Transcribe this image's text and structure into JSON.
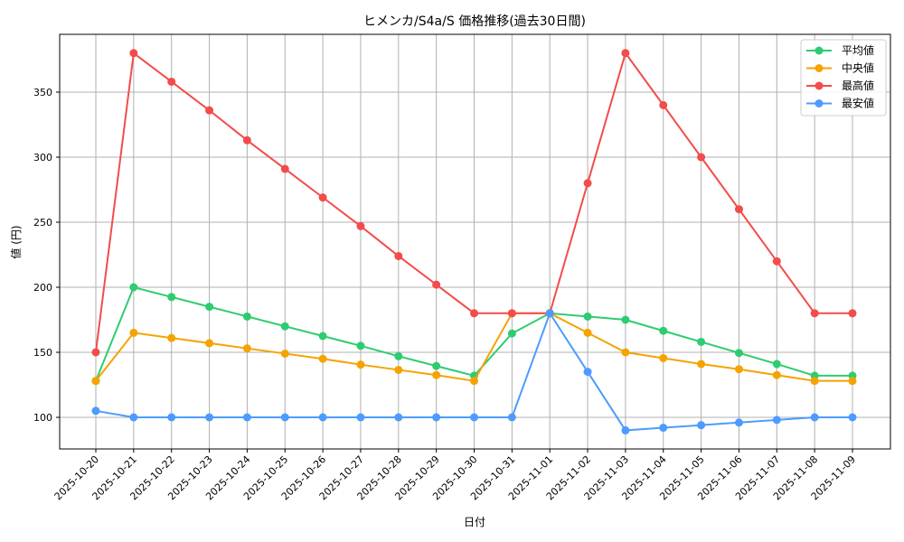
{
  "chart_data": {
    "type": "line",
    "title": "ヒメンカ/S4a/S 価格推移(過去30日間)",
    "xlabel": "日付",
    "ylabel": "値 (円)",
    "ylim": [
      75,
      392
    ],
    "yticks": [
      100,
      150,
      200,
      250,
      300,
      350
    ],
    "grid": true,
    "legend_position": "upper right",
    "categories": [
      "2025-10-20",
      "2025-10-21",
      "2025-10-22",
      "2025-10-23",
      "2025-10-24",
      "2025-10-25",
      "2025-10-26",
      "2025-10-27",
      "2025-10-28",
      "2025-10-29",
      "2025-10-30",
      "2025-10-31",
      "2025-11-01",
      "2025-11-02",
      "2025-11-03",
      "2025-11-04",
      "2025-11-05",
      "2025-11-06",
      "2025-11-07",
      "2025-11-08",
      "2025-11-09"
    ],
    "series": [
      {
        "name": "平均値",
        "color": "#2ecc71",
        "values": [
          128,
          200,
          192.5,
          185,
          177.5,
          170,
          162.5,
          155,
          147,
          139.5,
          132,
          164.5,
          180,
          177.5,
          175,
          166.5,
          158,
          149.5,
          141,
          132,
          132
        ]
      },
      {
        "name": "中央値",
        "color": "#f5a300",
        "values": [
          128,
          165,
          161,
          157,
          153,
          149,
          145,
          140.5,
          136.5,
          132.5,
          128,
          180,
          180,
          165,
          150,
          145.5,
          141,
          137,
          132.5,
          128,
          128
        ]
      },
      {
        "name": "最高値",
        "color": "#f44b4b",
        "values": [
          150,
          380,
          358,
          336,
          313,
          291,
          269,
          247,
          224,
          202,
          180,
          180,
          180,
          280,
          380,
          340,
          300,
          260,
          220,
          180,
          180
        ]
      },
      {
        "name": "最安値",
        "color": "#4d9bff",
        "values": [
          105,
          100,
          100,
          100,
          100,
          100,
          100,
          100,
          100,
          100,
          100,
          100,
          180,
          135,
          90,
          92,
          94,
          96,
          98,
          100,
          100
        ]
      }
    ]
  }
}
